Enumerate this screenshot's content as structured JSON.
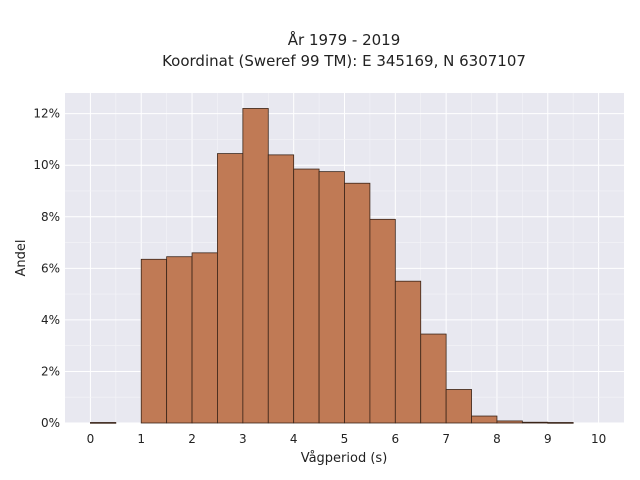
{
  "chart_data": {
    "type": "bar",
    "title": "År 1979 - 2019",
    "subtitle": "Koordinat (Sweref 99 TM): E 345169, N 6307107",
    "xlabel": "Vågperiod (s)",
    "ylabel": "Andel",
    "xlim": [
      -0.5,
      10.5
    ],
    "ylim": [
      0,
      12.8
    ],
    "x_ticks": [
      "0",
      "1",
      "2",
      "3",
      "4",
      "5",
      "6",
      "7",
      "8",
      "9",
      "10"
    ],
    "y_ticks": [
      "0%",
      "2%",
      "4%",
      "6%",
      "8%",
      "10%",
      "12%"
    ],
    "bin_width": 0.5,
    "bins": [
      {
        "start": 0.0,
        "value": 0.02
      },
      {
        "start": 1.0,
        "value": 6.35
      },
      {
        "start": 1.5,
        "value": 6.45
      },
      {
        "start": 2.0,
        "value": 6.6
      },
      {
        "start": 2.5,
        "value": 10.45
      },
      {
        "start": 3.0,
        "value": 12.2
      },
      {
        "start": 3.5,
        "value": 10.4
      },
      {
        "start": 4.0,
        "value": 9.85
      },
      {
        "start": 4.5,
        "value": 9.75
      },
      {
        "start": 5.0,
        "value": 9.3
      },
      {
        "start": 5.5,
        "value": 7.9
      },
      {
        "start": 6.0,
        "value": 5.5
      },
      {
        "start": 6.5,
        "value": 3.45
      },
      {
        "start": 7.0,
        "value": 1.3
      },
      {
        "start": 7.5,
        "value": 0.27
      },
      {
        "start": 8.0,
        "value": 0.08
      },
      {
        "start": 8.5,
        "value": 0.03
      },
      {
        "start": 9.0,
        "value": 0.02
      }
    ],
    "grid": true,
    "colors": {
      "bar_fill": "#c07a55",
      "bar_edge": "#3a2418",
      "plot_background": "#e8e8f0",
      "grid": "#ffffff"
    }
  }
}
